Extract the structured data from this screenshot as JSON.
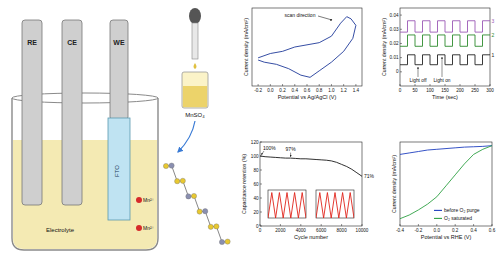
{
  "chart_data": [
    {
      "type": "line",
      "x_label": "Potential vs Ag/AgCl (V)",
      "y_label": "Current density (mA/cm²)",
      "x": [
        -0.2,
        0.0,
        0.2,
        0.4,
        0.6,
        0.8,
        1.0,
        1.15,
        1.25,
        1.32,
        1.4,
        1.35,
        1.2,
        1.0,
        0.8,
        0.65,
        0.5,
        0.3,
        0.1,
        -0.1,
        -0.2
      ],
      "series": [
        {
          "color": "#1f3a9a",
          "line_style": "solid",
          "values": [
            -0.05,
            0.05,
            0.1,
            0.2,
            0.25,
            0.3,
            0.45,
            0.75,
            0.9,
            0.85,
            0.7,
            0.4,
            0.1,
            -0.15,
            -0.35,
            -0.5,
            -0.45,
            -0.3,
            -0.2,
            -0.15,
            -0.1
          ]
        }
      ],
      "xlim": [
        -0.3,
        1.5
      ],
      "xticks": [
        -0.2,
        {
          "value": 0,
          "label": "0.0"
        },
        0.2,
        0.4,
        0.6,
        0.8,
        {
          "value": 1,
          "label": "1.0"
        },
        1.2,
        1.4
      ],
      "ylim": [
        -0.7,
        1.1
      ],
      "tick_labels": "x",
      "annotations": [
        {
          "text": "scan direction"
        }
      ]
    },
    {
      "type": "line",
      "x_label": "Time (sec)",
      "y_label": "Current density (mA/cm²)",
      "x": [
        0,
        25,
        25,
        50,
        50,
        75,
        75,
        100,
        100,
        125,
        125,
        150,
        150,
        175,
        175,
        200,
        200,
        225,
        225,
        250,
        250,
        275,
        275,
        300
      ],
      "series": [
        {
          "name": "1",
          "color": "#222222",
          "line_style": "solid",
          "values": [
            0.005,
            0.005,
            0.012,
            0.012,
            0.005,
            0.005,
            0.012,
            0.012,
            0.005,
            0.005,
            0.012,
            0.012,
            0.005,
            0.005,
            0.012,
            0.012,
            0.005,
            0.005,
            0.012,
            0.012,
            0.005,
            0.005,
            0.012,
            0.012
          ]
        },
        {
          "name": "2",
          "color": "#2e8b2e",
          "line_style": "solid",
          "values": [
            0.018,
            0.018,
            0.026,
            0.026,
            0.018,
            0.018,
            0.026,
            0.026,
            0.018,
            0.018,
            0.026,
            0.026,
            0.018,
            0.018,
            0.026,
            0.026,
            0.018,
            0.018,
            0.026,
            0.026,
            0.018,
            0.018,
            0.026,
            0.026
          ]
        },
        {
          "name": "3",
          "color": "#9b59b6",
          "line_style": "solid",
          "values": [
            0.028,
            0.028,
            0.036,
            0.036,
            0.028,
            0.028,
            0.036,
            0.036,
            0.028,
            0.028,
            0.036,
            0.036,
            0.028,
            0.028,
            0.036,
            0.036,
            0.028,
            0.028,
            0.036,
            0.036,
            0.028,
            0.028,
            0.036,
            0.036
          ]
        }
      ],
      "xlim": [
        0,
        300
      ],
      "xticks": [
        0,
        50,
        100,
        150,
        200,
        250,
        300
      ],
      "ylim": [
        -0.01,
        0.045
      ],
      "yticks": [
        0,
        0.01,
        0.02,
        0.03,
        0.04
      ],
      "annotations": [
        {
          "text": "Light off",
          "x": 60
        },
        {
          "text": "Light on",
          "x": 140
        }
      ]
    },
    {
      "type": "line",
      "x_label": "Cycle number",
      "y_label": "Capacitance retention (%)",
      "x": [
        0,
        500,
        1000,
        1500,
        2000,
        2500,
        3000,
        3500,
        4000,
        4500,
        5000,
        5500,
        6000,
        6500,
        7000,
        7500,
        8000,
        8500,
        9000,
        9500,
        10000
      ],
      "series": [
        {
          "color": "#1a1a1a",
          "line_style": "solid",
          "values": [
            100,
            99,
            98.5,
            98,
            97.5,
            97,
            97,
            96.5,
            96,
            96,
            95.5,
            95,
            94.5,
            94,
            93,
            91,
            88,
            85,
            81,
            76,
            71
          ]
        }
      ],
      "xlim": [
        0,
        10000
      ],
      "xticks": [
        0,
        2000,
        4000,
        6000,
        8000,
        10000
      ],
      "ylim": [
        0,
        120
      ],
      "yticks": [
        0,
        20,
        40,
        60,
        80,
        100,
        120
      ],
      "annotations": [
        {
          "text": "100%",
          "x": 0,
          "value": 100
        },
        {
          "text": "97%",
          "x": 3000,
          "value": 97
        },
        {
          "text": "71%",
          "x": 10000,
          "value": 71
        }
      ]
    },
    {
      "type": "line",
      "x_label": "Potential vs RHE (V)",
      "y_label": "Current density (mA/cm²)",
      "x": [
        -0.4,
        -0.3,
        -0.2,
        -0.1,
        0.0,
        0.1,
        0.2,
        0.3,
        0.4,
        0.5,
        0.6
      ],
      "series": [
        {
          "name": "before O₂ purge",
          "color": "#1f3fbf",
          "line_style": "solid",
          "values": [
            -0.12,
            -0.1,
            -0.08,
            -0.06,
            -0.05,
            -0.04,
            -0.03,
            -0.02,
            -0.015,
            -0.01,
            0
          ]
        },
        {
          "name": "O₂ saturated",
          "color": "#2ea043",
          "line_style": "solid",
          "values": [
            -1.0,
            -0.95,
            -0.88,
            -0.8,
            -0.7,
            -0.55,
            -0.4,
            -0.25,
            -0.12,
            -0.05,
            0
          ]
        }
      ],
      "xlim": [
        -0.4,
        0.6
      ],
      "xticks": [
        -0.4,
        -0.2,
        {
          "value": 0,
          "label": "0.0"
        },
        0.2,
        0.4,
        0.6
      ],
      "ylim": [
        -1.1,
        0.05
      ],
      "tick_labels": "x",
      "legend": "lower right"
    },
    {
      "type": "line",
      "x": [
        0,
        1,
        2,
        3,
        4,
        5,
        6,
        7,
        8,
        9,
        10
      ],
      "series": [
        {
          "color": "#e0241b",
          "line_style": "solid",
          "values": [
            0,
            1,
            0,
            1,
            0,
            1,
            0,
            1,
            0,
            1,
            0
          ]
        }
      ],
      "xlim": [
        0,
        10
      ],
      "ylim": [
        0,
        1.1
      ],
      "tick_labels": false
    },
    {
      "type": "line",
      "x": [
        0,
        1,
        2,
        3,
        4,
        5,
        6,
        7,
        8,
        9,
        10
      ],
      "series": [
        {
          "color": "#e0241b",
          "line_style": "solid",
          "values": [
            0,
            1,
            0,
            1,
            0,
            1,
            0,
            1,
            0,
            1,
            0
          ]
        }
      ],
      "xlim": [
        0,
        10
      ],
      "ylim": [
        0,
        1.1
      ],
      "tick_labels": false
    }
  ],
  "diagram": {
    "electrodes": [
      "RE",
      "CE",
      "WE"
    ],
    "electrolyte": "Electrolyte",
    "substrate": "FTO",
    "ions": [
      "Mn²⁺",
      "Mn²⁺"
    ],
    "reagent": "MnSO₄"
  }
}
